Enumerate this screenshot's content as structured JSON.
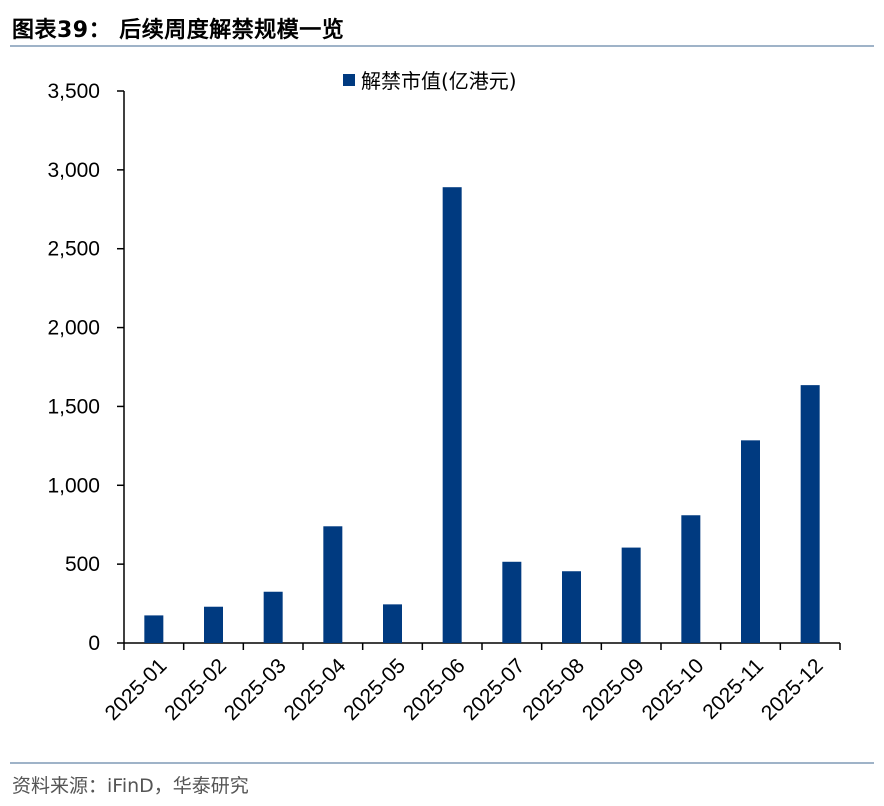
{
  "header": {
    "title": "图表39：  后续周度解禁规模一览"
  },
  "footer": {
    "source": "资料来源：iFinD，华泰研究"
  },
  "chart_data": {
    "type": "bar",
    "categories": [
      "2025-01",
      "2025-02",
      "2025-03",
      "2025-04",
      "2025-05",
      "2025-06",
      "2025-07",
      "2025-08",
      "2025-09",
      "2025-10",
      "2025-11",
      "2025-12"
    ],
    "series": [
      {
        "name": "解禁市值(亿港元)",
        "values": [
          175,
          230,
          325,
          740,
          245,
          2890,
          515,
          455,
          605,
          810,
          1285,
          1635
        ]
      }
    ],
    "ylim": [
      0,
      3500
    ],
    "yticks": [
      0,
      500,
      1000,
      1500,
      2000,
      2500,
      3000,
      3500
    ],
    "ytick_labels": [
      "0",
      "500",
      "1,000",
      "1,500",
      "2,000",
      "2,500",
      "3,000",
      "3,500"
    ],
    "legend_position": "top-center",
    "grid": false,
    "bar_color": "#003a80"
  }
}
